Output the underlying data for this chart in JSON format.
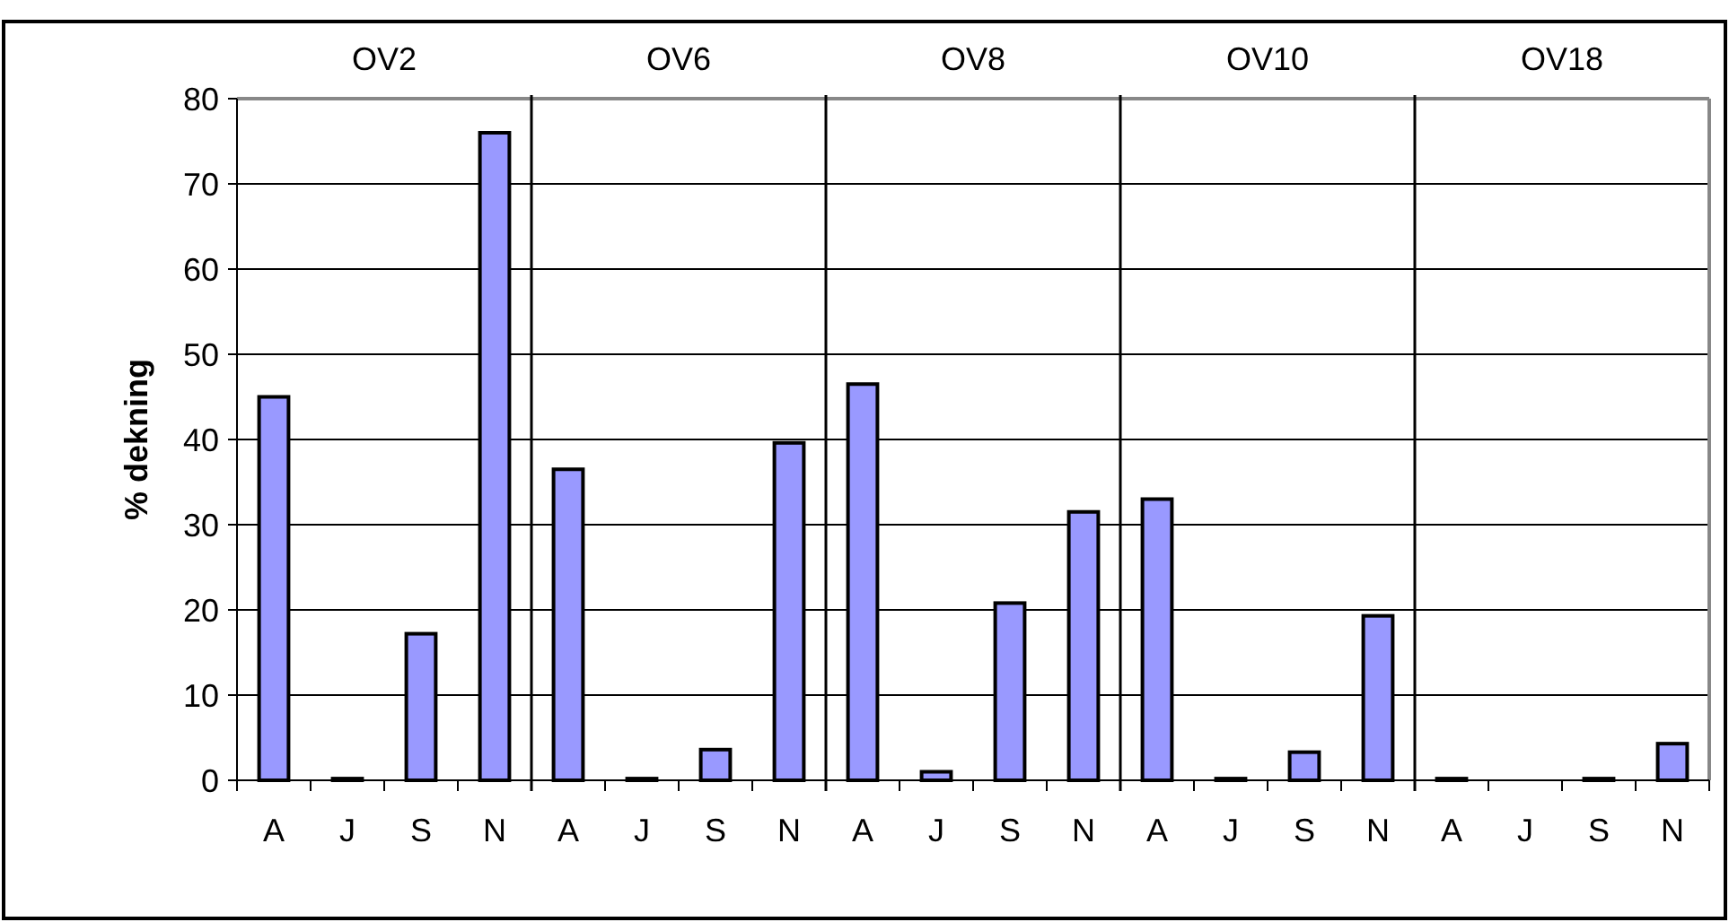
{
  "chart_data": {
    "type": "bar",
    "ylabel": "% dekning",
    "categories": [
      "A",
      "J",
      "S",
      "N",
      "A",
      "J",
      "S",
      "N",
      "A",
      "J",
      "S",
      "N",
      "A",
      "J",
      "S",
      "N",
      "A",
      "J",
      "S",
      "N"
    ],
    "values": [
      45,
      0.2,
      17.2,
      76,
      36.5,
      0.2,
      3.6,
      39.6,
      46.5,
      1,
      20.8,
      31.5,
      33,
      0.2,
      3.3,
      19.3,
      0.2,
      0,
      0.2,
      4.3
    ],
    "color": "#9999ff",
    "ylim": [
      0,
      80
    ],
    "yticks": [
      0,
      10,
      20,
      30,
      40,
      50,
      60,
      70,
      80
    ],
    "grid": "y",
    "annotations": [
      "OV2",
      "OV6",
      "OV8",
      "OV10",
      "OV18"
    ]
  }
}
